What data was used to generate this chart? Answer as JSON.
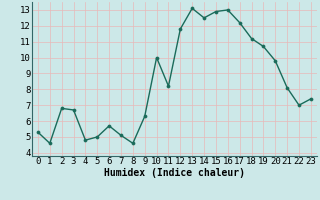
{
  "x": [
    0,
    1,
    2,
    3,
    4,
    5,
    6,
    7,
    8,
    9,
    10,
    11,
    12,
    13,
    14,
    15,
    16,
    17,
    18,
    19,
    20,
    21,
    22,
    23
  ],
  "y": [
    5.3,
    4.6,
    6.8,
    6.7,
    4.8,
    5.0,
    5.7,
    5.1,
    4.6,
    6.3,
    10.0,
    8.2,
    11.8,
    13.1,
    12.5,
    12.9,
    13.0,
    12.2,
    11.2,
    10.7,
    9.8,
    8.1,
    7.0,
    7.4
  ],
  "line_color": "#1a6b5a",
  "marker": "o",
  "markersize": 2.2,
  "linewidth": 1.0,
  "xlabel": "Humidex (Indice chaleur)",
  "xlabel_fontsize": 7,
  "tick_fontsize": 6.5,
  "xlim": [
    -0.5,
    23.5
  ],
  "ylim": [
    3.8,
    13.5
  ],
  "yticks": [
    4,
    5,
    6,
    7,
    8,
    9,
    10,
    11,
    12,
    13
  ],
  "xticks": [
    0,
    1,
    2,
    3,
    4,
    5,
    6,
    7,
    8,
    9,
    10,
    11,
    12,
    13,
    14,
    15,
    16,
    17,
    18,
    19,
    20,
    21,
    22,
    23
  ],
  "xtick_labels": [
    "0",
    "1",
    "2",
    "3",
    "4",
    "5",
    "6",
    "7",
    "8",
    "9",
    "10",
    "11",
    "12",
    "13",
    "14",
    "15",
    "16",
    "17",
    "18",
    "19",
    "20",
    "21",
    "22",
    "23"
  ],
  "bg_color": "#cce8e8",
  "grid_color": "#e8b8b8",
  "grid_linewidth": 0.5,
  "border_color": "#336666"
}
